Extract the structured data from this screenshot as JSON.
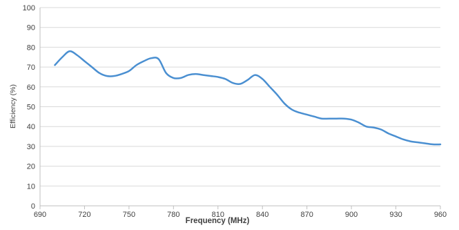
{
  "chart_data": {
    "type": "line",
    "title": "",
    "xlabel": "Frequency (MHz)",
    "ylabel": "Efficiency (%)",
    "xlim": [
      690,
      960
    ],
    "ylim": [
      0,
      100
    ],
    "x_ticks": [
      690,
      720,
      750,
      780,
      810,
      840,
      870,
      900,
      930,
      960
    ],
    "y_ticks": [
      0,
      10,
      20,
      30,
      40,
      50,
      60,
      70,
      80,
      90,
      100
    ],
    "grid": "horizontal",
    "legend": "none",
    "series": [
      {
        "color": "#4a8fd1",
        "x": [
          700,
          705,
          710,
          715,
          720,
          725,
          730,
          735,
          740,
          745,
          750,
          755,
          760,
          765,
          770,
          775,
          780,
          785,
          790,
          795,
          800,
          805,
          810,
          815,
          820,
          825,
          830,
          835,
          840,
          845,
          850,
          855,
          860,
          865,
          870,
          875,
          880,
          885,
          890,
          895,
          900,
          905,
          910,
          915,
          920,
          925,
          930,
          935,
          940,
          945,
          950,
          955,
          960
        ],
        "y": [
          71,
          75,
          78,
          76,
          73,
          70,
          67,
          65.5,
          65.5,
          66.5,
          68,
          71,
          73,
          74.5,
          74,
          67,
          64.5,
          64.5,
          66,
          66.5,
          66,
          65.5,
          65,
          64,
          62,
          61.5,
          63.5,
          66,
          64,
          60,
          56,
          51.5,
          48.5,
          47,
          46,
          45,
          44,
          44,
          44,
          44,
          43.5,
          42,
          40,
          39.5,
          38.5,
          36.5,
          35,
          33.5,
          32.5,
          32,
          31.5,
          31,
          31
        ]
      }
    ]
  }
}
